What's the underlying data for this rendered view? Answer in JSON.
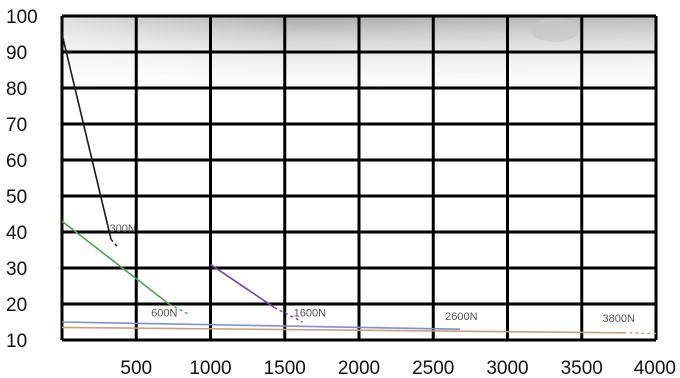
{
  "chart_data": {
    "type": "line",
    "title": "",
    "xlabel": "",
    "ylabel": "",
    "xlim": [
      0,
      4000
    ],
    "ylim": [
      10,
      100
    ],
    "x_ticks": [
      "500",
      "1000",
      "1500",
      "2000",
      "2500",
      "3000",
      "3500",
      "4000"
    ],
    "y_ticks": [
      "10",
      "20",
      "30",
      "40",
      "50",
      "60",
      "70",
      "80",
      "90",
      "100"
    ],
    "grid": true,
    "series": [
      {
        "name": "300N",
        "color": "#1a1a1a",
        "points": [
          [
            0,
            95
          ],
          [
            330,
            38
          ]
        ],
        "dashed_tail": [
          [
            330,
            38
          ],
          [
            370,
            36
          ]
        ]
      },
      {
        "name": "600N",
        "color": "#4aa84a",
        "points": [
          [
            0,
            43
          ],
          [
            720,
            20
          ]
        ],
        "dashed_tail": [
          [
            720,
            20
          ],
          [
            860,
            17
          ]
        ]
      },
      {
        "name": "1600N",
        "color": "#7a3fb8",
        "points": [
          [
            1000,
            31
          ],
          [
            1430,
            19
          ]
        ],
        "dashed_tail": [
          [
            1430,
            19
          ],
          [
            1620,
            15
          ]
        ]
      },
      {
        "name": "2600N",
        "color": "#7b8fd8",
        "points": [
          [
            0,
            15
          ],
          [
            2680,
            13
          ]
        ],
        "dashed_tail": []
      },
      {
        "name": "3800N",
        "color": "#c9a07a",
        "points": [
          [
            0,
            13.5
          ],
          [
            3780,
            12
          ]
        ],
        "dashed_tail": [
          [
            3780,
            12
          ],
          [
            4000,
            11.8
          ]
        ]
      }
    ],
    "series_labels": [
      {
        "text": "300N",
        "x": 320,
        "y": 40
      },
      {
        "text": "600N",
        "x": 600,
        "y": 16.5
      },
      {
        "text": "1600N",
        "x": 1560,
        "y": 16.5
      },
      {
        "text": "2600N",
        "x": 2580,
        "y": 15.5
      },
      {
        "text": "3800N",
        "x": 3640,
        "y": 15
      }
    ]
  }
}
